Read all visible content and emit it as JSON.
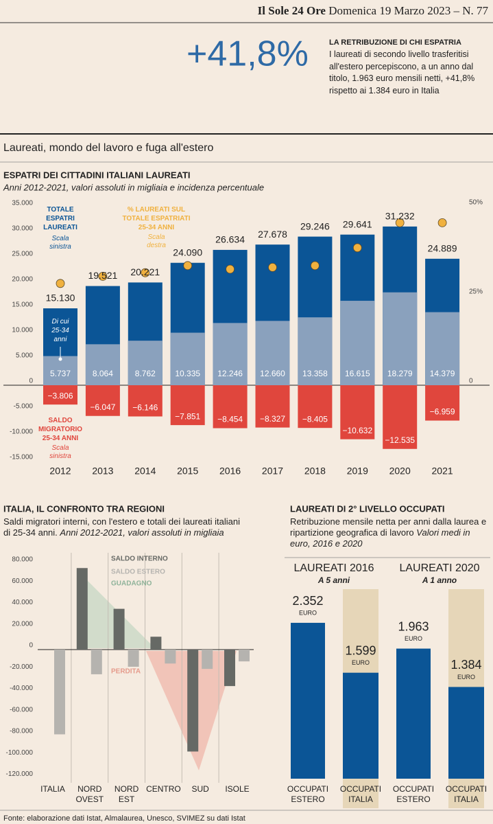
{
  "header": {
    "masthead": "Il Sole 24 Ore",
    "dateline": "Domenica 19 Marzo 2023 – N. 77"
  },
  "highlight": {
    "value": "+41,8%",
    "title": "LA RETRIBUZIONE DI CHI ESPATRIA",
    "text": "I laureati di secondo livello trasferitisi all'estero percepiscono, a un anno dal titolo, 1.963 euro mensili netti, +41,8% rispetto ai 1.384 euro in Italia"
  },
  "section_title": "Laureati, mondo del lavoro e fuga all'estero",
  "chart_data": [
    {
      "type": "bar",
      "title": "ESPATRI DEI CITTADINI ITALIANI LAUREATI",
      "subtitle": "Anni 2012-2021, valori assoluti in migliaia e incidenza percentuale",
      "categories": [
        "2012",
        "2013",
        "2014",
        "2015",
        "2016",
        "2017",
        "2018",
        "2019",
        "2020",
        "2021"
      ],
      "ylim": [
        -15000,
        35000
      ],
      "yticks": [
        {
          "value": 35000,
          "label": "35.000"
        },
        {
          "value": 30000,
          "label": "30.000"
        },
        {
          "value": 25000,
          "label": "25.000"
        },
        {
          "value": 20000,
          "label": "20.000"
        },
        {
          "value": 15000,
          "label": "15.000"
        },
        {
          "value": 10000,
          "label": "10.000"
        },
        {
          "value": 5000,
          "label": "5.000"
        },
        0,
        {
          "value": -5000,
          "label": "-5.000"
        },
        {
          "value": -10000,
          "label": "-10.000"
        },
        {
          "value": -15000,
          "label": "-15.000"
        }
      ],
      "y2lim": [
        0,
        50
      ],
      "y2ticks": [
        {
          "value": 50,
          "label": "50%"
        },
        {
          "value": 25,
          "label": "25%"
        },
        0
      ],
      "series": [
        {
          "name": "TOTALE ESPATRI LAUREATI",
          "note": "Scala sinistra",
          "color": "#0b5596",
          "values": [
            15130,
            19521,
            20221,
            24090,
            26634,
            27678,
            29246,
            29641,
            31232,
            24889
          ],
          "value_labels": [
            "15.130",
            "19.521",
            "20.221",
            "24.090",
            "26.634",
            "27.678",
            "29.246",
            "29.641",
            "31.232",
            "24.889"
          ]
        },
        {
          "name": "Di cui 25-34 anni",
          "color": "#8aa1bd",
          "values": [
            5737,
            8064,
            8762,
            10335,
            12246,
            12660,
            13358,
            16615,
            18279,
            14379
          ],
          "value_labels": [
            "5.737",
            "8.064",
            "8.762",
            "10.335",
            "12.246",
            "12.660",
            "13.358",
            "16.615",
            "18.279",
            "14.379"
          ]
        },
        {
          "name": "SALDO MIGRATORIO 25-34 ANNI",
          "note": "Scala sinistra",
          "color": "#e0463d",
          "values": [
            -3806,
            -6047,
            -6146,
            -7851,
            -8454,
            -8327,
            -8405,
            -10632,
            -12535,
            -6959
          ],
          "value_labels": [
            "−3.806",
            "−6.047",
            "−6.146",
            "−7.851",
            "−8.454",
            "−8.327",
            "−8.405",
            "−10.632",
            "−12.535",
            "−6.959"
          ]
        },
        {
          "name": "% LAUREATI SUL TOTALE ESPATRIATI 25-34 ANNI",
          "note": "Scala destra",
          "type": "scatter",
          "axis": "y2",
          "color": "#f0b13f",
          "values": [
            28.5,
            30.5,
            31.5,
            33.5,
            32.5,
            33,
            33.5,
            38.5,
            45.5,
            45.5
          ]
        }
      ]
    },
    {
      "type": "bar",
      "title": "ITALIA, IL CONFRONTO TRA REGIONI",
      "subtitle": "Saldi migratori interni, con l'estero e totali dei laureati italiani di 25-34 anni.",
      "subtitle_italic": "Anni 2012-2021, valori assoluti in migliaia",
      "categories": [
        "ITALIA",
        "NORD OVEST",
        "NORD EST",
        "CENTRO",
        "SUD",
        "ISOLE"
      ],
      "ylim": [
        -120000,
        80000
      ],
      "yticks": [
        {
          "value": 80000,
          "label": "80.000"
        },
        {
          "value": 60000,
          "label": "60.000"
        },
        {
          "value": 40000,
          "label": "40.000"
        },
        {
          "value": 20000,
          "label": "20.000"
        },
        0,
        {
          "value": -20000,
          "label": "-20.000"
        },
        {
          "value": -40000,
          "label": "-40.000"
        },
        {
          "value": -60000,
          "label": "-60.000"
        },
        {
          "value": -80000,
          "label": "-80.000"
        },
        {
          "value": -100000,
          "label": "-100.000"
        },
        {
          "value": -120000,
          "label": "-120.000"
        }
      ],
      "series": [
        {
          "name": "SALDO INTERNO",
          "color": "#666965",
          "values": [
            null,
            76000,
            38000,
            12000,
            -95000,
            -34000
          ]
        },
        {
          "name": "SALDO ESTERO",
          "color": "#b5b3af",
          "values": [
            -79000,
            -23000,
            -16000,
            -13000,
            -18000,
            -11000
          ]
        }
      ],
      "annotations": [
        {
          "text": "GUADAGNO",
          "color": "#8fb39a"
        },
        {
          "text": "PERDITA",
          "color": "#e59b8c"
        }
      ]
    },
    {
      "type": "bar",
      "title": "LAUREATI DI 2° LIVELLO OCCUPATI",
      "subtitle": "Retribuzione mensile netta per anni dalla laurea e ripartizione geografica di lavoro",
      "subtitle_italic": "Valori medi in euro, 2016 e 2020",
      "categories": [
        "OCCUPATI ESTERO",
        "OCCUPATI ITALIA"
      ],
      "unit": "EURO",
      "color": "#0b5596",
      "highlight_color": "#e6d6b8",
      "groups": [
        {
          "title": "LAUREATI 2016",
          "subtitle": "A 5 anni",
          "values": [
            2352,
            1599
          ],
          "value_labels": [
            "2.352",
            "1.599"
          ]
        },
        {
          "title": "LAUREATI 2020",
          "subtitle": "A 1 anno",
          "values": [
            1963,
            1384
          ],
          "value_labels": [
            "1.963",
            "1.384"
          ]
        }
      ]
    }
  ],
  "source": "Fonte: elaborazione dati Istat, Almalaurea, Unesco, SVIMEZ su dati Istat"
}
